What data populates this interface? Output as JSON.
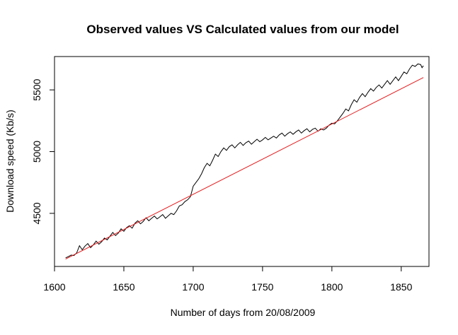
{
  "chart_data": {
    "type": "line",
    "title": "Observed values VS Calculated values from our model",
    "xlabel": "Number of days from 20/08/2009",
    "ylabel": "Download speed (Kb/s)",
    "xlim": [
      1600,
      1870
    ],
    "ylim": [
      4070,
      5770
    ],
    "x_ticks": [
      1600,
      1650,
      1700,
      1750,
      1800,
      1850
    ],
    "y_ticks": [
      4500,
      5000,
      5500
    ],
    "grid": false,
    "legend": "none",
    "series": [
      {
        "color": "#000000",
        "points": [
          [
            1608,
            4140
          ],
          [
            1610,
            4150
          ],
          [
            1612,
            4162
          ],
          [
            1614,
            4158
          ],
          [
            1616,
            4180
          ],
          [
            1618,
            4238
          ],
          [
            1620,
            4205
          ],
          [
            1622,
            4235
          ],
          [
            1624,
            4255
          ],
          [
            1626,
            4222
          ],
          [
            1628,
            4245
          ],
          [
            1630,
            4275
          ],
          [
            1632,
            4250
          ],
          [
            1634,
            4270
          ],
          [
            1636,
            4300
          ],
          [
            1638,
            4285
          ],
          [
            1640,
            4315
          ],
          [
            1642,
            4345
          ],
          [
            1644,
            4320
          ],
          [
            1646,
            4340
          ],
          [
            1648,
            4375
          ],
          [
            1650,
            4355
          ],
          [
            1652,
            4385
          ],
          [
            1654,
            4400
          ],
          [
            1656,
            4380
          ],
          [
            1658,
            4420
          ],
          [
            1660,
            4440
          ],
          [
            1662,
            4415
          ],
          [
            1664,
            4435
          ],
          [
            1666,
            4465
          ],
          [
            1668,
            4440
          ],
          [
            1670,
            4460
          ],
          [
            1672,
            4478
          ],
          [
            1674,
            4455
          ],
          [
            1676,
            4472
          ],
          [
            1678,
            4490
          ],
          [
            1680,
            4460
          ],
          [
            1682,
            4480
          ],
          [
            1684,
            4500
          ],
          [
            1686,
            4490
          ],
          [
            1688,
            4520
          ],
          [
            1690,
            4560
          ],
          [
            1692,
            4570
          ],
          [
            1694,
            4595
          ],
          [
            1696,
            4610
          ],
          [
            1698,
            4635
          ],
          [
            1700,
            4720
          ],
          [
            1702,
            4750
          ],
          [
            1704,
            4780
          ],
          [
            1706,
            4820
          ],
          [
            1708,
            4870
          ],
          [
            1710,
            4905
          ],
          [
            1712,
            4885
          ],
          [
            1714,
            4930
          ],
          [
            1716,
            4980
          ],
          [
            1718,
            4960
          ],
          [
            1720,
            5000
          ],
          [
            1722,
            5030
          ],
          [
            1724,
            5010
          ],
          [
            1726,
            5040
          ],
          [
            1728,
            5055
          ],
          [
            1730,
            5030
          ],
          [
            1732,
            5055
          ],
          [
            1734,
            5075
          ],
          [
            1736,
            5050
          ],
          [
            1738,
            5072
          ],
          [
            1740,
            5085
          ],
          [
            1742,
            5060
          ],
          [
            1744,
            5080
          ],
          [
            1746,
            5100
          ],
          [
            1748,
            5080
          ],
          [
            1750,
            5095
          ],
          [
            1752,
            5115
          ],
          [
            1754,
            5095
          ],
          [
            1756,
            5110
          ],
          [
            1758,
            5125
          ],
          [
            1760,
            5110
          ],
          [
            1762,
            5135
          ],
          [
            1764,
            5150
          ],
          [
            1766,
            5125
          ],
          [
            1768,
            5145
          ],
          [
            1770,
            5160
          ],
          [
            1772,
            5140
          ],
          [
            1774,
            5160
          ],
          [
            1776,
            5175
          ],
          [
            1778,
            5150
          ],
          [
            1780,
            5170
          ],
          [
            1782,
            5185
          ],
          [
            1784,
            5160
          ],
          [
            1786,
            5180
          ],
          [
            1788,
            5190
          ],
          [
            1790,
            5165
          ],
          [
            1792,
            5185
          ],
          [
            1794,
            5175
          ],
          [
            1796,
            5190
          ],
          [
            1798,
            5215
          ],
          [
            1800,
            5230
          ],
          [
            1802,
            5225
          ],
          [
            1804,
            5250
          ],
          [
            1806,
            5280
          ],
          [
            1808,
            5310
          ],
          [
            1810,
            5345
          ],
          [
            1812,
            5330
          ],
          [
            1814,
            5380
          ],
          [
            1816,
            5420
          ],
          [
            1818,
            5400
          ],
          [
            1820,
            5440
          ],
          [
            1822,
            5470
          ],
          [
            1824,
            5445
          ],
          [
            1826,
            5480
          ],
          [
            1828,
            5510
          ],
          [
            1830,
            5490
          ],
          [
            1832,
            5520
          ],
          [
            1834,
            5540
          ],
          [
            1836,
            5515
          ],
          [
            1838,
            5545
          ],
          [
            1840,
            5575
          ],
          [
            1842,
            5545
          ],
          [
            1844,
            5575
          ],
          [
            1846,
            5605
          ],
          [
            1848,
            5575
          ],
          [
            1850,
            5610
          ],
          [
            1852,
            5645
          ],
          [
            1854,
            5630
          ],
          [
            1856,
            5670
          ],
          [
            1858,
            5700
          ],
          [
            1860,
            5690
          ],
          [
            1862,
            5710
          ],
          [
            1864,
            5705
          ],
          [
            1865,
            5680
          ],
          [
            1866,
            5695
          ]
        ]
      },
      {
        "color": "#e41a1c",
        "points": [
          [
            1608,
            4130
          ],
          [
            1866,
            5600
          ]
        ]
      }
    ]
  }
}
